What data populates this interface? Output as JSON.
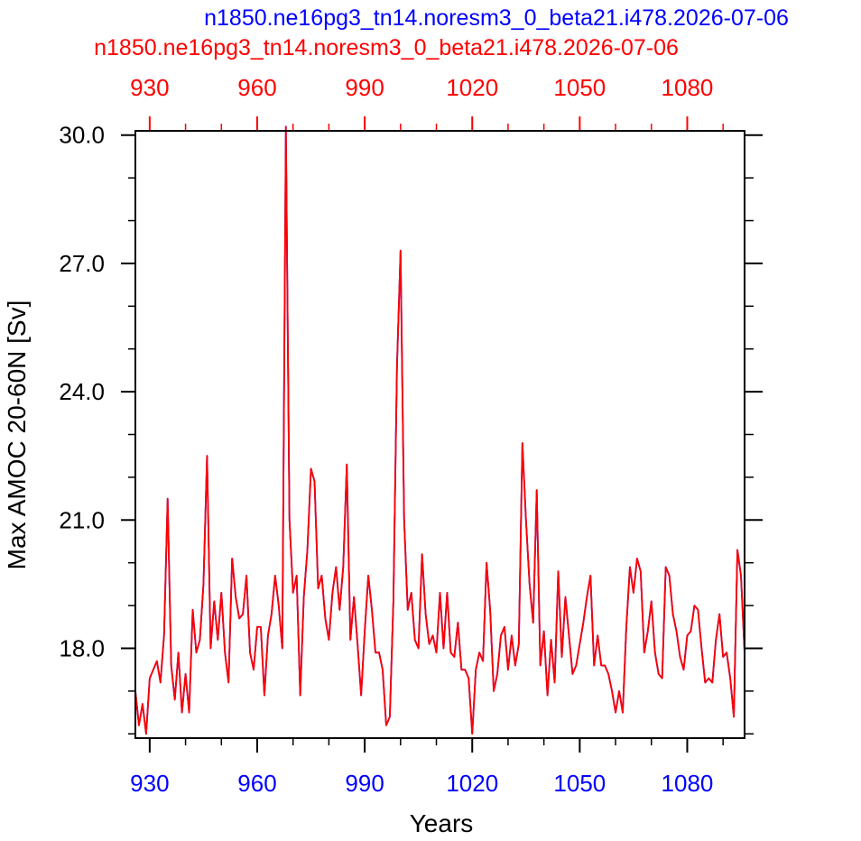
{
  "chart_data": {
    "type": "line",
    "title_top": "n1850.ne16pg3_tn14.noresm3_0_beta21.i478.2026-07-06",
    "title_bottom": "n1850.ne16pg3_tn14.noresm3_0_beta21.i478.2026-07-06",
    "xlabel": "Years",
    "ylabel": "Max AMOC 20-60N [Sv]",
    "xlim": [
      926,
      1096
    ],
    "ylim": [
      15.9,
      30.1
    ],
    "x_ticks": [
      930,
      960,
      990,
      1020,
      1050,
      1080
    ],
    "x_tick_labels": [
      "930",
      "960",
      "990",
      "1020",
      "1050",
      "1080"
    ],
    "y_ticks": [
      18,
      21,
      24,
      27,
      30
    ],
    "y_tick_labels": [
      "18.0",
      "21.0",
      "24.0",
      "27.0",
      "30.0"
    ],
    "grid": false,
    "colors": {
      "top_axis": "#ff0000",
      "bottom_axis": "#0000ff",
      "series_a": "#ff0000",
      "series_b": "#0000ff",
      "frame": "#000000"
    },
    "x_start": 926,
    "series": [
      {
        "name": "n1850.ne16pg3_tn14.noresm3_0_beta21.i478.2026-07-06",
        "color": "#ff0000",
        "values": [
          17.0,
          16.2,
          16.7,
          16.0,
          17.3,
          17.5,
          17.7,
          17.2,
          18.3,
          21.5,
          17.6,
          16.8,
          17.9,
          16.5,
          17.4,
          16.5,
          18.9,
          17.9,
          18.2,
          19.5,
          22.5,
          18.0,
          19.1,
          18.2,
          19.3,
          17.9,
          17.2,
          20.1,
          19.2,
          18.7,
          18.8,
          19.7,
          17.9,
          17.5,
          18.5,
          18.5,
          16.9,
          18.3,
          18.8,
          19.7,
          19.0,
          18.0,
          30.2,
          21.0,
          19.3,
          19.7,
          16.9,
          19.2,
          20.3,
          22.2,
          21.9,
          19.4,
          19.7,
          18.7,
          18.2,
          19.3,
          19.9,
          18.9,
          19.9,
          22.3,
          18.2,
          19.2,
          18.1,
          16.9,
          18.4,
          19.7,
          18.9,
          17.9,
          17.9,
          17.5,
          16.2,
          16.4,
          19.1,
          24.6,
          27.3,
          21.0,
          18.9,
          19.3,
          18.2,
          18.0,
          20.2,
          18.8,
          18.1,
          18.3,
          17.9,
          19.3,
          18.0,
          19.3,
          17.9,
          17.8,
          18.6,
          17.5,
          17.5,
          17.3,
          16.0,
          17.5,
          17.9,
          17.7,
          20.0,
          18.9,
          17.0,
          17.4,
          18.3,
          18.5,
          17.5,
          18.3,
          17.6,
          18.1,
          22.8,
          21.0,
          19.5,
          18.6,
          21.7,
          17.6,
          18.4,
          16.9,
          18.2,
          17.2,
          19.8,
          17.8,
          19.2,
          18.3,
          17.4,
          17.6,
          18.1,
          18.6,
          19.2,
          19.7,
          17.6,
          18.3,
          17.6,
          17.6,
          17.4,
          17.0,
          16.5,
          17.0,
          16.5,
          18.5,
          19.9,
          19.3,
          20.1,
          19.8,
          17.9,
          18.4,
          19.1,
          17.9,
          17.4,
          17.3,
          19.9,
          19.7,
          18.8,
          18.4,
          17.8,
          17.5,
          18.3,
          18.4,
          19.0,
          18.9,
          18.0,
          17.2,
          17.3,
          17.2,
          18.2,
          18.8,
          17.8,
          17.9,
          17.3,
          16.4,
          20.3,
          19.7,
          17.9
        ]
      },
      {
        "name": "n1850.ne16pg3_tn14.noresm3_0_beta21.i478.2026-07-06",
        "color": "#0000ff",
        "values": [
          17.0,
          16.2,
          16.7,
          16.0,
          17.3,
          17.5,
          17.7,
          17.2,
          18.3,
          21.5,
          17.6,
          16.8,
          17.9,
          16.5,
          17.4,
          16.5,
          18.9,
          17.9,
          18.2,
          19.5,
          22.5,
          18.0,
          19.1,
          18.2,
          19.3,
          17.9,
          17.2,
          20.1,
          19.2,
          18.7,
          18.8,
          19.7,
          17.9,
          17.5,
          18.5,
          18.5,
          16.9,
          18.3,
          18.8,
          19.7,
          19.0,
          18.0,
          30.2,
          21.0,
          19.3,
          19.7,
          16.9,
          19.2,
          20.3,
          22.2,
          21.9,
          19.4,
          19.7,
          18.7,
          18.2,
          19.3,
          19.9,
          18.9,
          19.9,
          22.3,
          18.2,
          19.2,
          18.1,
          16.9,
          18.4,
          19.7,
          18.9,
          17.9,
          17.9,
          17.5,
          16.2,
          16.4,
          19.1,
          24.6,
          27.3,
          21.0,
          18.9,
          19.3,
          18.2,
          18.0,
          20.2,
          18.8,
          18.1,
          18.3,
          17.9,
          19.3,
          18.0,
          19.3,
          17.9,
          17.8,
          18.6,
          17.5,
          17.5,
          17.3,
          16.0,
          17.5,
          17.9,
          17.7,
          20.0,
          18.9,
          17.0,
          17.4,
          18.3,
          18.5,
          17.5,
          18.3,
          17.6,
          18.1,
          22.8,
          21.0,
          19.5,
          18.6,
          21.7,
          17.6,
          18.4,
          16.9,
          18.2,
          17.2,
          19.8,
          17.8,
          19.2,
          18.3,
          17.4,
          17.6,
          18.1,
          18.6,
          19.2,
          19.7,
          17.6,
          18.3,
          17.6,
          17.6,
          17.4,
          17.0,
          16.5,
          17.0,
          16.5,
          18.5,
          19.9,
          19.3,
          20.1,
          19.8,
          17.9,
          18.4,
          19.1,
          17.9,
          17.4,
          17.3,
          19.9,
          19.7,
          18.8,
          18.4,
          17.8,
          17.5,
          18.3,
          18.4,
          19.0,
          18.9,
          18.0,
          17.2,
          17.3,
          17.2,
          18.2,
          18.8,
          17.8,
          17.9,
          17.3,
          16.4,
          20.3,
          19.7,
          17.9
        ]
      }
    ]
  }
}
